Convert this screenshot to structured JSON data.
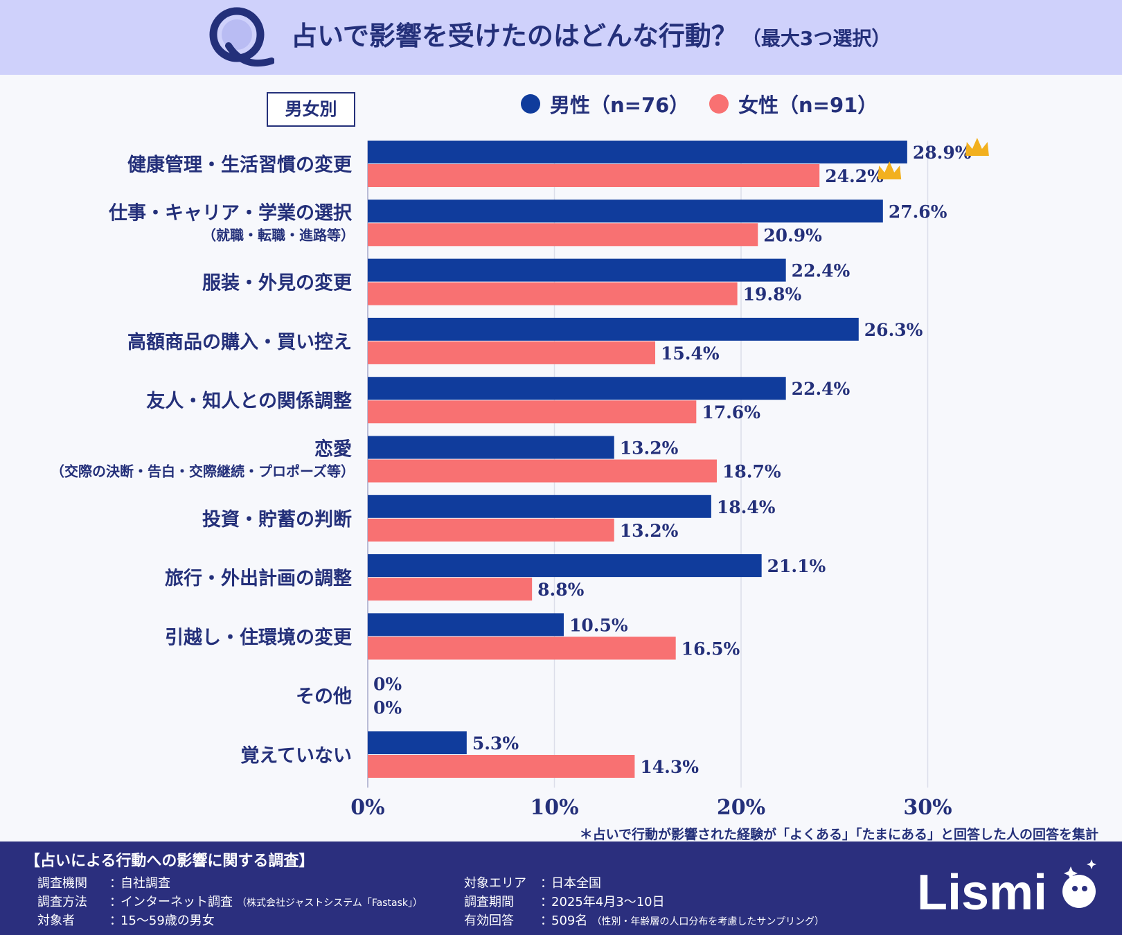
{
  "header": {
    "q_mark": "Q",
    "title": "占いで影響を受けたのはどんな行動？",
    "subtitle": "（最大3つ選択）"
  },
  "group_label": "男女別",
  "colors": {
    "male": "#103c9c",
    "female": "#f87172",
    "crown": "#f2b01e",
    "header_bg": "#cfd1fb",
    "footer_bg": "#2b2f7e"
  },
  "chart_data": {
    "type": "bar",
    "orientation": "horizontal",
    "series": [
      {
        "name": "男性（n=76）",
        "values": [
          28.9,
          27.6,
          22.4,
          26.3,
          22.4,
          13.2,
          18.4,
          21.1,
          10.5,
          0,
          5.3
        ]
      },
      {
        "name": "女性（n=91）",
        "values": [
          24.2,
          20.9,
          19.8,
          15.4,
          17.6,
          18.7,
          13.2,
          8.8,
          16.5,
          0,
          14.3
        ]
      }
    ],
    "categories": [
      {
        "label": "健康管理・生活習慣の変更",
        "sub": ""
      },
      {
        "label": "仕事・キャリア・学業の選択",
        "sub": "（就職・転職・進路等）"
      },
      {
        "label": "服装・外見の変更",
        "sub": ""
      },
      {
        "label": "高額商品の購入・買い控え",
        "sub": ""
      },
      {
        "label": "友人・知人との関係調整",
        "sub": ""
      },
      {
        "label": "恋愛",
        "sub": "（交際の決断・告白・交際継続・プロポーズ等）"
      },
      {
        "label": "投資・貯蓄の判断",
        "sub": ""
      },
      {
        "label": "旅行・外出計画の調整",
        "sub": ""
      },
      {
        "label": "引越し・住環境の変更",
        "sub": ""
      },
      {
        "label": "その他",
        "sub": ""
      },
      {
        "label": "覚えていない",
        "sub": ""
      }
    ],
    "value_labels": {
      "male": [
        "28.9%",
        "27.6%",
        "22.4%",
        "26.3%",
        "22.4%",
        "13.2%",
        "18.4%",
        "21.1%",
        "10.5%",
        "0%",
        "5.3%"
      ],
      "female": [
        "24.2%",
        "20.9%",
        "19.8%",
        "15.4%",
        "17.6%",
        "18.7%",
        "13.2%",
        "8.8%",
        "16.5%",
        "0%",
        "14.3%"
      ]
    },
    "top_marker": "crown",
    "x_ticks": [
      {
        "value": 0,
        "label": "0%"
      },
      {
        "value": 10,
        "label": "10%"
      },
      {
        "value": 20,
        "label": "20%"
      },
      {
        "value": 30,
        "label": "30%"
      }
    ],
    "xlim": [
      0,
      30
    ],
    "grid": true
  },
  "note": "＊占いで行動が影響された経験が「よくある」「たまにある」と回答した人の回答を集計",
  "footer": {
    "title": "【占いによる行動への影響に関する調査】",
    "left": [
      {
        "key": "調査機関",
        "value": "自社調査",
        "small": ""
      },
      {
        "key": "調査方法",
        "value": "インターネット調査",
        "small": "（株式会社ジャストシステム「Fastask」）"
      },
      {
        "key": "対象者",
        "value": "15～59歳の男女",
        "small": ""
      }
    ],
    "right": [
      {
        "key": "対象エリア",
        "value": "日本全国",
        "small": ""
      },
      {
        "key": "調査期間",
        "value": "2025年4月3～10日",
        "small": ""
      },
      {
        "key": "有効回答",
        "value": "509名",
        "small": "（性別・年齢層の人口分布を考慮したサンプリング）"
      }
    ],
    "brand": "Lismi"
  }
}
